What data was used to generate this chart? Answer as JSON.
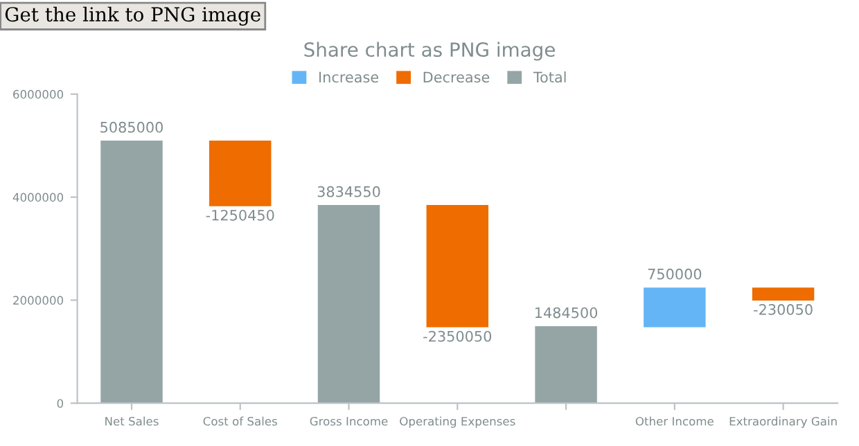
{
  "chart_data": {
    "type": "bar",
    "title": "Share chart as PNG image",
    "categories": [
      "Net Sales",
      "Cost of Sales",
      "Gross Income",
      "Operating Expenses",
      null,
      "Other Income",
      "Extraordinary Gain"
    ],
    "series": [
      {
        "name": "Increase",
        "color": "#64b5f6",
        "values": [
          null,
          null,
          null,
          null,
          null,
          750000,
          null
        ],
        "base": [
          null,
          null,
          null,
          null,
          null,
          1484500,
          null
        ]
      },
      {
        "name": "Decrease",
        "color": "#ef6c00",
        "values": [
          null,
          -1250450,
          null,
          -2350050,
          null,
          null,
          -230050
        ],
        "base": [
          null,
          5085000,
          null,
          3834550,
          null,
          null,
          2234500
        ]
      },
      {
        "name": "Total",
        "color": "#95a5a6",
        "values": [
          5085000,
          null,
          3834550,
          null,
          1484500,
          null,
          null
        ],
        "base": [
          0,
          null,
          0,
          null,
          0,
          null,
          null
        ]
      }
    ],
    "ylim": [
      0,
      6000000
    ],
    "yticks": [
      0,
      2000000,
      4000000,
      6000000
    ],
    "data_labels": true,
    "grid": false,
    "legend": "top",
    "annotations": [
      "Get the link to PNG image"
    ]
  }
}
